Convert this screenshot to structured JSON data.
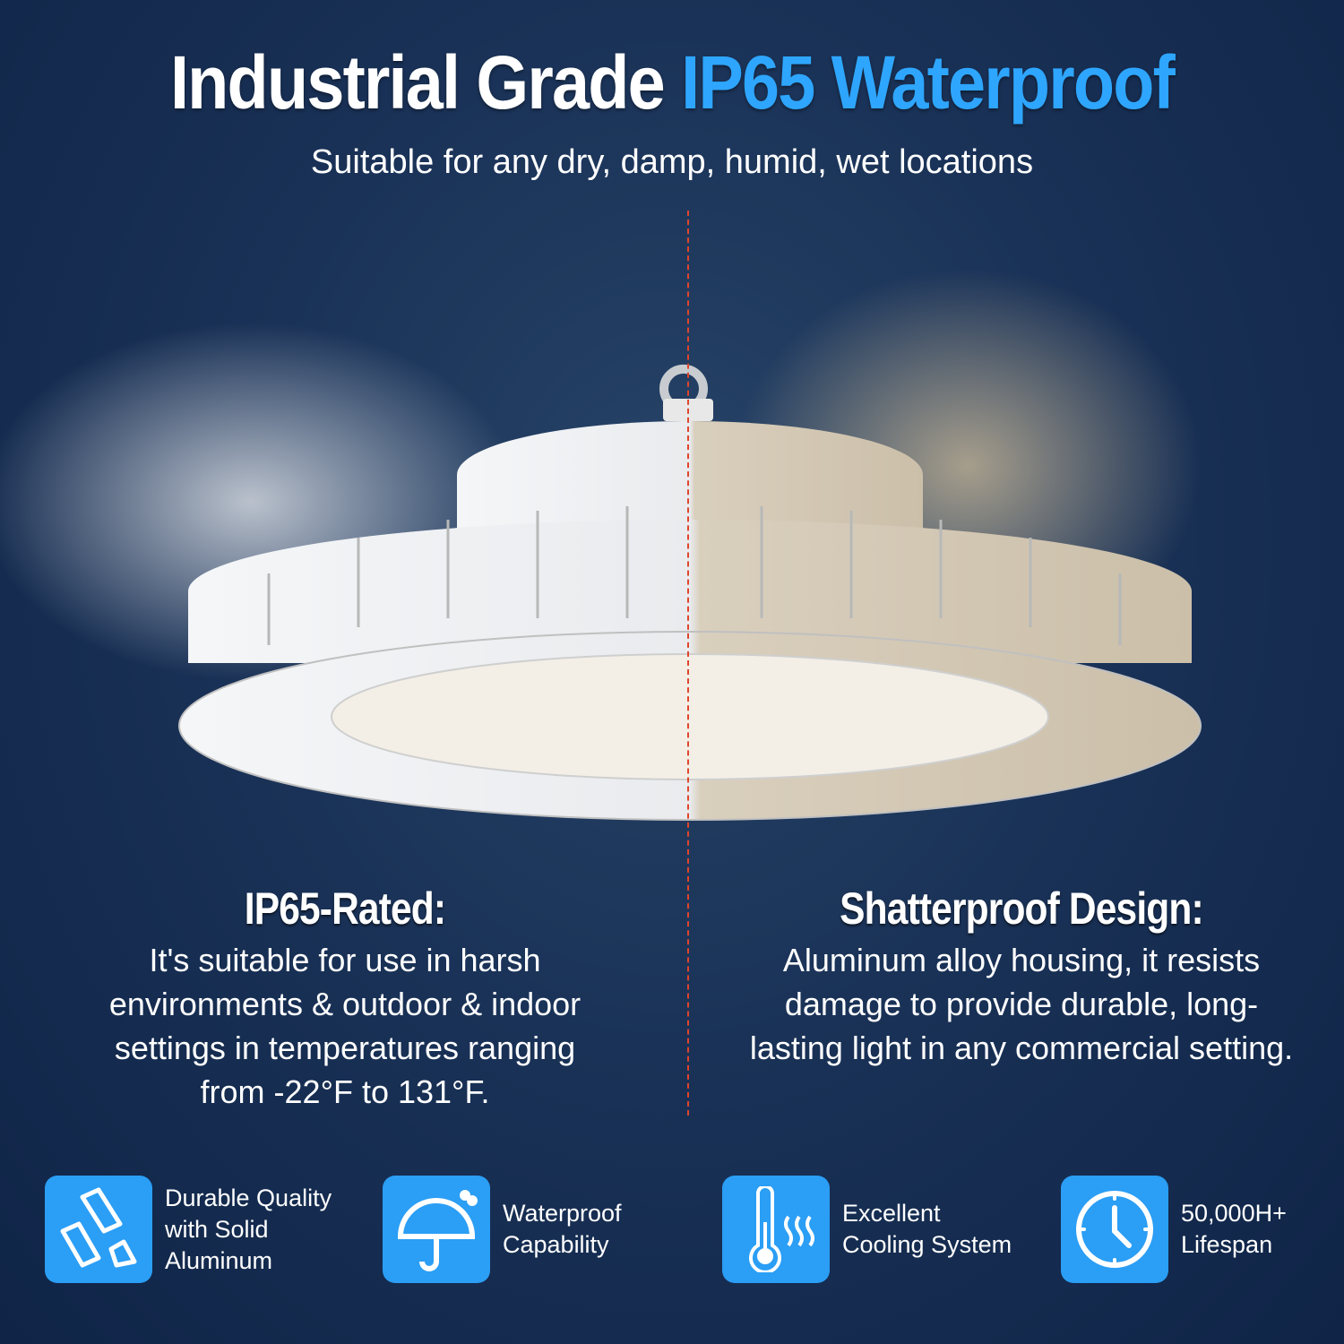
{
  "header": {
    "title_main": "Industrial Grade",
    "title_accent": "IP65 Waterproof",
    "subtitle": "Suitable for any dry, damp, humid, wet locations"
  },
  "left": {
    "heading": "IP65-Rated:",
    "body": "It's suitable for use in harsh environments & outdoor & indoor settings in temperatures ranging from -22°F to 131°F."
  },
  "right": {
    "heading": "Shatterproof Design:",
    "body": "Aluminum alloy housing, it resists damage to provide durable, long-lasting light in any commercial setting."
  },
  "features": [
    {
      "icon": "aluminum-bars-icon",
      "label": "Durable Quality\nwith Solid\nAluminum"
    },
    {
      "icon": "umbrella-icon",
      "label": "Waterproof\nCapability"
    },
    {
      "icon": "thermometer-icon",
      "label": "Excellent\nCooling System"
    },
    {
      "icon": "clock-icon",
      "label": "50,000H+\nLifespan"
    }
  ],
  "colors": {
    "accent": "#2ea6ff",
    "icon_bg": "#2b9ef5",
    "divider": "#e0442c",
    "background": "#1a3257"
  }
}
